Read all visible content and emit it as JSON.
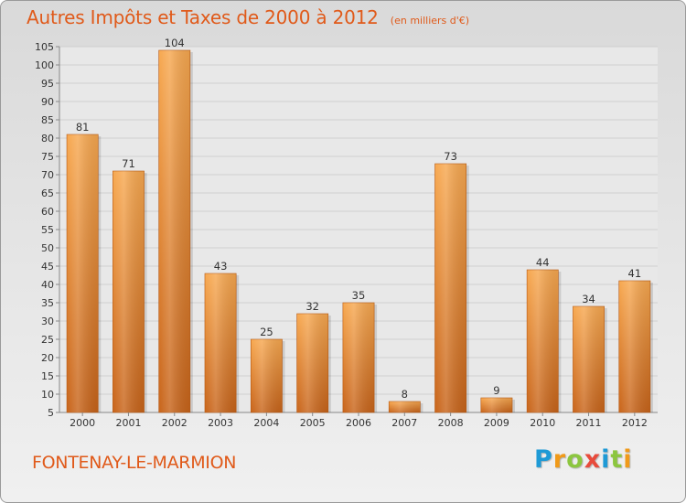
{
  "chart_data": {
    "type": "bar",
    "title": "Autres Impôts et Taxes de 2000 à 2012",
    "subtitle": "(en milliers d'€)",
    "categories": [
      "2000",
      "2001",
      "2002",
      "2003",
      "2004",
      "2005",
      "2006",
      "2007",
      "2008",
      "2009",
      "2010",
      "2011",
      "2012"
    ],
    "values": [
      81,
      71,
      104,
      43,
      25,
      32,
      35,
      8,
      73,
      9,
      44,
      34,
      41
    ],
    "data_labels": [
      "81",
      "71",
      "104",
      "43",
      "25",
      "32",
      "35",
      "8",
      "73",
      "9",
      "44",
      "34",
      "41"
    ],
    "yticks": [
      5,
      10,
      15,
      20,
      25,
      30,
      35,
      40,
      45,
      50,
      55,
      60,
      65,
      70,
      75,
      80,
      85,
      90,
      95,
      100,
      105
    ],
    "ylim": [
      5,
      105
    ],
    "grid": "horizontal",
    "legend": "none",
    "bar_color": "#f28d2e",
    "bar_color_light": "#f7a850",
    "bar_color_dark": "#c8641a"
  },
  "location": {
    "name": "FONTENAY-LE-MARMION"
  },
  "brand": {
    "letters": [
      {
        "char": "P",
        "color": "#1e9ad6"
      },
      {
        "char": "r",
        "color": "#f09a1a"
      },
      {
        "char": "o",
        "color": "#8cc63f"
      },
      {
        "char": "x",
        "color": "#e84b3c"
      },
      {
        "char": "i",
        "color": "#1e9ad6"
      },
      {
        "char": "t",
        "color": "#8cc63f"
      },
      {
        "char": "i",
        "color": "#f09a1a"
      }
    ]
  }
}
